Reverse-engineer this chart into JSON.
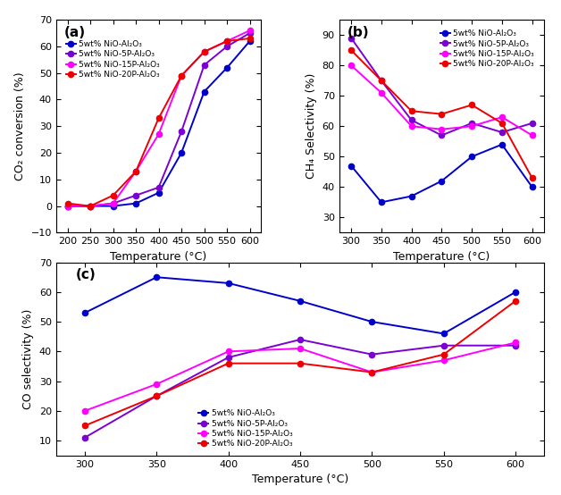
{
  "panel_a": {
    "xlabel": "Temperature (°C)",
    "ylabel": "CO₂ conversion (%)",
    "label": "(a)",
    "ylim": [
      -10,
      70
    ],
    "yticks": [
      -10,
      0,
      10,
      20,
      30,
      40,
      50,
      60,
      70
    ],
    "xlim": [
      175,
      625
    ],
    "xticks": [
      200,
      250,
      300,
      350,
      400,
      450,
      500,
      550,
      600
    ],
    "legend_loc": "upper left",
    "series": [
      {
        "label": "5wt% NiO-Al₂O₃",
        "color": "#0000cc",
        "x": [
          200,
          250,
          300,
          350,
          400,
          450,
          500,
          550,
          600
        ],
        "y": [
          0,
          0,
          0,
          1,
          5,
          20,
          43,
          52,
          62
        ]
      },
      {
        "label": "5wt% NiO-5P-Al₂O₃",
        "color": "#7b00d4",
        "x": [
          200,
          250,
          300,
          350,
          400,
          450,
          500,
          550,
          600
        ],
        "y": [
          0,
          0,
          1,
          4,
          7,
          28,
          53,
          60,
          65
        ]
      },
      {
        "label": "5wt% NiO-15P-Al₂O₃",
        "color": "#ff00ff",
        "x": [
          200,
          250,
          300,
          350,
          400,
          450,
          500,
          550,
          600
        ],
        "y": [
          0,
          0,
          1,
          13,
          27,
          49,
          58,
          62,
          66
        ]
      },
      {
        "label": "5wt% NiO-20P-Al₂O₃",
        "color": "#ee0000",
        "x": [
          200,
          250,
          300,
          350,
          400,
          450,
          500,
          550,
          600
        ],
        "y": [
          1,
          0,
          4,
          13,
          33,
          49,
          58,
          62,
          63
        ]
      }
    ]
  },
  "panel_b": {
    "xlabel": "Temperature (°C)",
    "ylabel": "CH₄ Selectivity (%)",
    "label": "(b)",
    "ylim": [
      25,
      95
    ],
    "yticks": [
      30,
      40,
      50,
      60,
      70,
      80,
      90
    ],
    "xlim": [
      280,
      620
    ],
    "xticks": [
      300,
      350,
      400,
      450,
      500,
      550,
      600
    ],
    "legend_loc": "upper right",
    "series": [
      {
        "label": "5wt% NiO-Al₂O₃",
        "color": "#0000cc",
        "x": [
          300,
          350,
          400,
          450,
          500,
          550,
          600
        ],
        "y": [
          47,
          35,
          37,
          42,
          50,
          54,
          40
        ]
      },
      {
        "label": "5wt% NiO-5P-Al₂O₃",
        "color": "#7b00d4",
        "x": [
          300,
          350,
          400,
          450,
          500,
          550,
          600
        ],
        "y": [
          89,
          75,
          62,
          57,
          61,
          58,
          61
        ]
      },
      {
        "label": "5wt% NiO-15P-Al₂O₃",
        "color": "#ff00ff",
        "x": [
          300,
          350,
          400,
          450,
          500,
          550,
          600
        ],
        "y": [
          80,
          71,
          60,
          59,
          60,
          63,
          57
        ]
      },
      {
        "label": "5wt% NiO-20P-Al₂O₃",
        "color": "#ee0000",
        "x": [
          300,
          350,
          400,
          450,
          500,
          550,
          600
        ],
        "y": [
          85,
          75,
          65,
          64,
          67,
          61,
          43
        ]
      }
    ]
  },
  "panel_c": {
    "xlabel": "Temperature (°C)",
    "ylabel": "CO selectivity (%)",
    "label": "(c)",
    "ylim": [
      5,
      70
    ],
    "yticks": [
      10,
      20,
      30,
      40,
      50,
      60,
      70
    ],
    "xlim": [
      280,
      620
    ],
    "xticks": [
      300,
      350,
      400,
      450,
      500,
      550,
      600
    ],
    "legend_loc": "lower center",
    "series": [
      {
        "label": "5wt% NiO-Al₂O₃",
        "color": "#0000cc",
        "x": [
          300,
          350,
          400,
          450,
          500,
          550,
          600
        ],
        "y": [
          53,
          65,
          63,
          57,
          50,
          46,
          60
        ]
      },
      {
        "label": "5wt% NiO-5P-Al₂O₃",
        "color": "#7b00d4",
        "x": [
          300,
          350,
          400,
          450,
          500,
          550,
          600
        ],
        "y": [
          11,
          25,
          38,
          44,
          39,
          42,
          42
        ]
      },
      {
        "label": "5wt% NiO-15P-Al₂O₃",
        "color": "#ff00ff",
        "x": [
          300,
          350,
          400,
          450,
          500,
          550,
          600
        ],
        "y": [
          20,
          29,
          40,
          41,
          33,
          37,
          43
        ]
      },
      {
        "label": "5wt% NiO-20P-Al₂O₃",
        "color": "#ee0000",
        "x": [
          300,
          350,
          400,
          450,
          500,
          550,
          600
        ],
        "y": [
          15,
          25,
          36,
          36,
          33,
          39,
          57
        ]
      }
    ]
  },
  "marker": "o",
  "markersize": 4.5,
  "linewidth": 1.4,
  "tick_fontsize": 8,
  "label_fontsize": 9,
  "legend_fontsize": 6.5,
  "panel_label_fontsize": 11
}
